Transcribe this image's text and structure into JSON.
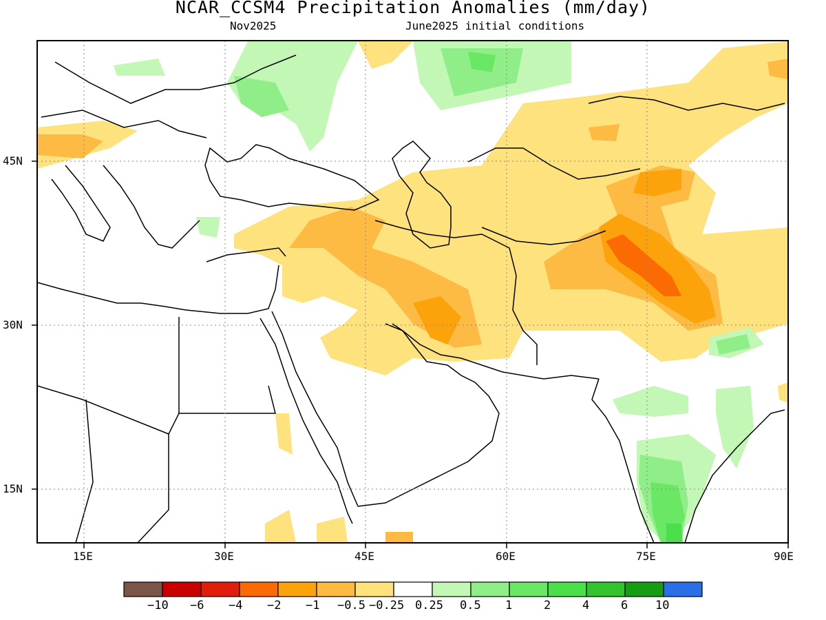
{
  "title": "NCAR_CCSM4 Precipitation Anomalies (mm/day)",
  "subtitle_left": "Nov2025",
  "subtitle_right": "June2025 initial conditions",
  "map": {
    "lon_range": [
      10,
      90
    ],
    "lat_range": [
      10,
      57
    ],
    "lon_ticks": [
      "15E",
      "30E",
      "45E",
      "60E",
      "75E",
      "90E"
    ],
    "lat_ticks": [
      "45N",
      "30N",
      "15N"
    ],
    "grid": "dotted",
    "colors": {
      "very_dry_brown": "#7a5548",
      "dark_red": "#c80000",
      "red": "#e01e0a",
      "dark_orange": "#fc6a03",
      "orange": "#fca30c",
      "light_orange": "#fdbb44",
      "pale_yellow": "#fde27e",
      "white": "#ffffff",
      "pale_green": "#c3f7b5",
      "light_green": "#90ee88",
      "green": "#6ae764",
      "mid_green": "#4bdf4b",
      "darker_green": "#32c32d",
      "dark_green": "#179d14",
      "blue": "#2a6fe6"
    }
  },
  "colorbar": {
    "colors": [
      "#7a5548",
      "#c80000",
      "#e01e0a",
      "#fc6a03",
      "#fca30c",
      "#fdbb44",
      "#fde27e",
      "#ffffff",
      "#c3f7b5",
      "#90ee88",
      "#6ae764",
      "#4bdf4b",
      "#32c32d",
      "#179d14",
      "#2a6fe6"
    ],
    "labels": [
      "−10",
      "−6",
      "−4",
      "−2",
      "−1",
      "−0.5",
      "−0.25",
      "0.25",
      "0.5",
      "1",
      "2",
      "4",
      "6",
      "10"
    ]
  }
}
